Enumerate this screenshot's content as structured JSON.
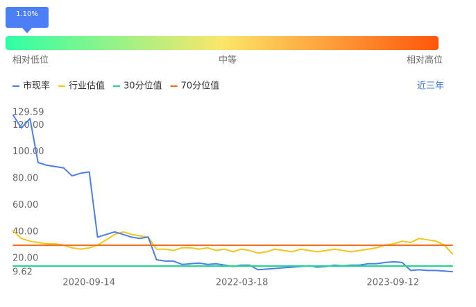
{
  "gauge": {
    "value": 1.1,
    "value_label": "1.10%",
    "labels": [
      "相对低位",
      "中等",
      "相对高位"
    ]
  },
  "chart_data": {
    "type": "line",
    "range_button": "近三年",
    "x": [
      "2019-12-15",
      "2020-01-15",
      "2020-02-15",
      "2020-03-15",
      "2020-04-15",
      "2020-05-15",
      "2020-06-15",
      "2020-07-15",
      "2020-08-15",
      "2020-09-15",
      "2020-10-15",
      "2020-11-15",
      "2020-12-15",
      "2021-01-15",
      "2021-02-15",
      "2021-03-15",
      "2021-04-15",
      "2021-05-15",
      "2021-06-15",
      "2021-07-15",
      "2021-08-15",
      "2021-09-15",
      "2021-10-15",
      "2021-11-15",
      "2021-12-15",
      "2022-01-15",
      "2022-02-15",
      "2022-03-15",
      "2022-04-15",
      "2022-05-15",
      "2022-06-15",
      "2022-07-15",
      "2022-08-15",
      "2022-09-15",
      "2022-10-15",
      "2022-11-15",
      "2022-12-15",
      "2023-01-15",
      "2023-02-15",
      "2023-03-15",
      "2023-04-15",
      "2023-05-15",
      "2023-06-15",
      "2023-07-15",
      "2023-08-15",
      "2023-09-15",
      "2023-10-15",
      "2023-11-15",
      "2023-12-15",
      "2024-01-15",
      "2024-02-15",
      "2024-03-15",
      "2024-04-15"
    ],
    "xlim": [
      "2019-12-14",
      "2024-04-28"
    ],
    "xticks": [
      "2020-09-14",
      "2022-03-18",
      "2023-09-12"
    ],
    "ylim": [
      9.62,
      129.59
    ],
    "yticks": [
      9.62,
      {
        "value": 20,
        "label": "20.00"
      },
      {
        "value": 40,
        "label": "40.00"
      },
      {
        "value": 60,
        "label": "60.00"
      },
      {
        "value": 80,
        "label": "80.00"
      },
      {
        "value": 100,
        "label": "100.00"
      },
      {
        "value": 120,
        "label": "120.00"
      },
      129.59
    ],
    "grid": false,
    "series": [
      {
        "name": "市现率",
        "color": "#4a7df0",
        "values": [
          128,
          118,
          125,
          92,
          90,
          89,
          88,
          82,
          84,
          85,
          36,
          38,
          40,
          38,
          36,
          35,
          36,
          19,
          18,
          18,
          15.5,
          16,
          16.5,
          15.5,
          16,
          15,
          14,
          15,
          15,
          11.5,
          12,
          12.5,
          13,
          13.5,
          14,
          14.5,
          13.5,
          14,
          15,
          14.5,
          15,
          15,
          16,
          16,
          17,
          17.5,
          17,
          11,
          11.5,
          11,
          11,
          10.5,
          10
        ]
      },
      {
        "name": "行业估值",
        "color": "#f5c518",
        "values": [
          41,
          35,
          33,
          32,
          31,
          31,
          30,
          28,
          27,
          28,
          30,
          34,
          38,
          40,
          38,
          37,
          36,
          27,
          27,
          26,
          28,
          28,
          27,
          28,
          26,
          27,
          25,
          27,
          26,
          24,
          25,
          27,
          26,
          25,
          27,
          26,
          25,
          26,
          27,
          26,
          25,
          26,
          27,
          28,
          30,
          31,
          33,
          32,
          35,
          34,
          33,
          30,
          23
        ]
      },
      {
        "name": "30分位值",
        "color": "#1fd68a",
        "values": [
          14.3,
          14.3,
          14.3,
          14.3,
          14.3,
          14.3,
          14.3,
          14.3,
          14.3,
          14.3,
          14.3,
          14.3,
          14.3,
          14.3,
          14.3,
          14.3,
          14.3,
          14.3,
          14.3,
          14.3,
          14.3,
          14.3,
          14.3,
          14.3,
          14.3,
          14.3,
          14.3,
          14.3,
          14.3,
          14.3,
          14.3,
          14.3,
          14.3,
          14.3,
          14.3,
          14.3,
          14.3,
          14.3,
          14.3,
          14.3,
          14.3,
          14.3,
          14.3,
          14.3,
          14.3,
          14.3,
          14.3,
          14.3,
          14.3,
          14.3,
          14.3,
          14.3,
          14.3
        ]
      },
      {
        "name": "70分位值",
        "color": "#f06a1e",
        "values": [
          29.9,
          29.9,
          29.9,
          29.9,
          29.9,
          29.9,
          29.9,
          29.9,
          29.9,
          29.9,
          29.9,
          29.9,
          29.9,
          29.9,
          29.9,
          29.9,
          29.9,
          29.9,
          29.9,
          29.9,
          29.9,
          29.9,
          29.9,
          29.9,
          29.9,
          29.9,
          29.9,
          29.9,
          29.9,
          29.9,
          29.9,
          29.9,
          29.9,
          29.9,
          29.9,
          29.9,
          29.9,
          29.9,
          29.9,
          29.9,
          29.9,
          29.9,
          29.9,
          29.9,
          29.9,
          29.9,
          29.9,
          29.9,
          29.9,
          29.9,
          29.9,
          29.9,
          29.9
        ]
      }
    ]
  }
}
